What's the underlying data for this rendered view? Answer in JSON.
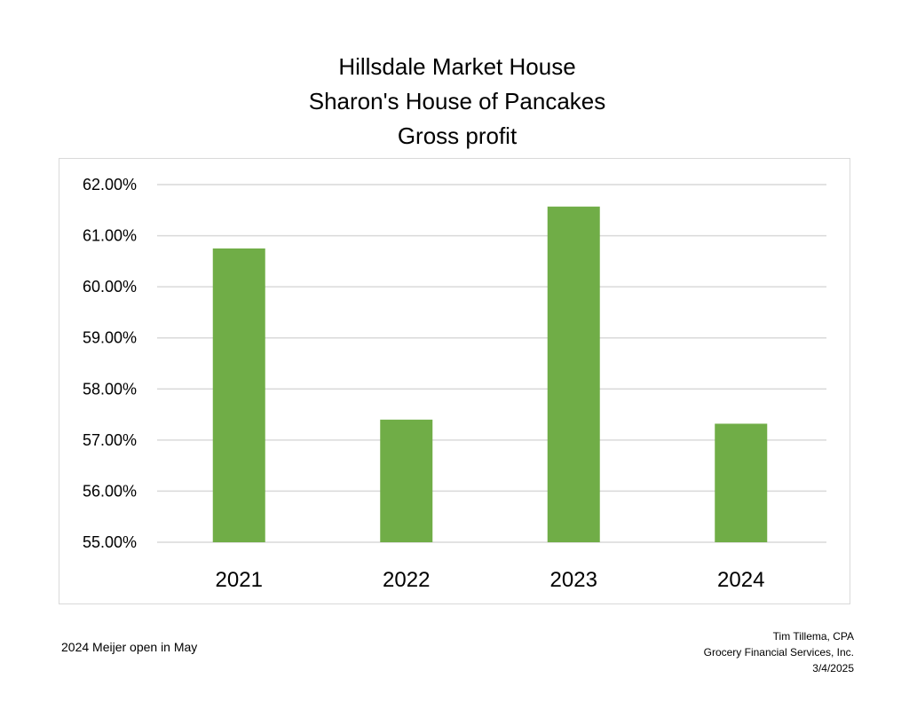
{
  "title_lines": [
    "Hillsdale Market House",
    "Sharon's House of Pancakes",
    "Gross profit"
  ],
  "footnote": "2024 Meijer open in May",
  "signature": {
    "name": "Tim Tillema, CPA",
    "company": "Grocery Financial Services, Inc.",
    "date": "3/4/2025"
  },
  "colors": {
    "bar": "#70ad47",
    "gridline": "#d9d9d9"
  },
  "chart_data": {
    "type": "bar",
    "categories": [
      "2021",
      "2022",
      "2023",
      "2024"
    ],
    "values": [
      60.75,
      57.4,
      61.57,
      57.32
    ],
    "value_format": "percent_2dp",
    "ylim": [
      55.0,
      62.0
    ],
    "ytick_step": 1.0,
    "ytick_labels": [
      "55.00%",
      "56.00%",
      "57.00%",
      "58.00%",
      "59.00%",
      "60.00%",
      "61.00%",
      "62.00%"
    ],
    "grid": true,
    "legend": "none"
  }
}
